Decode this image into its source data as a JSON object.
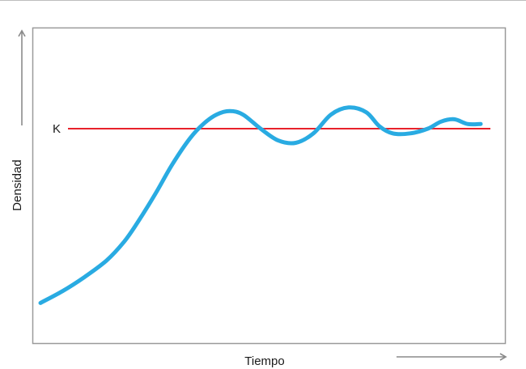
{
  "chart_data": {
    "type": "line",
    "title": "",
    "xlabel": "Tiempo",
    "ylabel": "Densidad",
    "xlim": [
      0,
      100
    ],
    "ylim": [
      0,
      100
    ],
    "grid": false,
    "legend": "none",
    "reference_line": {
      "label": "K",
      "value": 78,
      "color": "#e8222b"
    },
    "series": [
      {
        "color": "#29abe2",
        "x": [
          0,
          5,
          10,
          15,
          19,
          22,
          26,
          30,
          34,
          37,
          40,
          43,
          46,
          50,
          54,
          58,
          62,
          66,
          70,
          74,
          77,
          80,
          84,
          88,
          91,
          94,
          97,
          100
        ],
        "y": [
          4,
          9,
          15,
          22,
          30,
          38,
          50,
          63,
          74,
          80,
          84,
          85.5,
          84,
          78,
          73,
          72,
          76,
          84,
          87,
          85,
          79,
          76,
          76,
          78,
          81,
          82,
          80,
          80
        ]
      }
    ]
  }
}
